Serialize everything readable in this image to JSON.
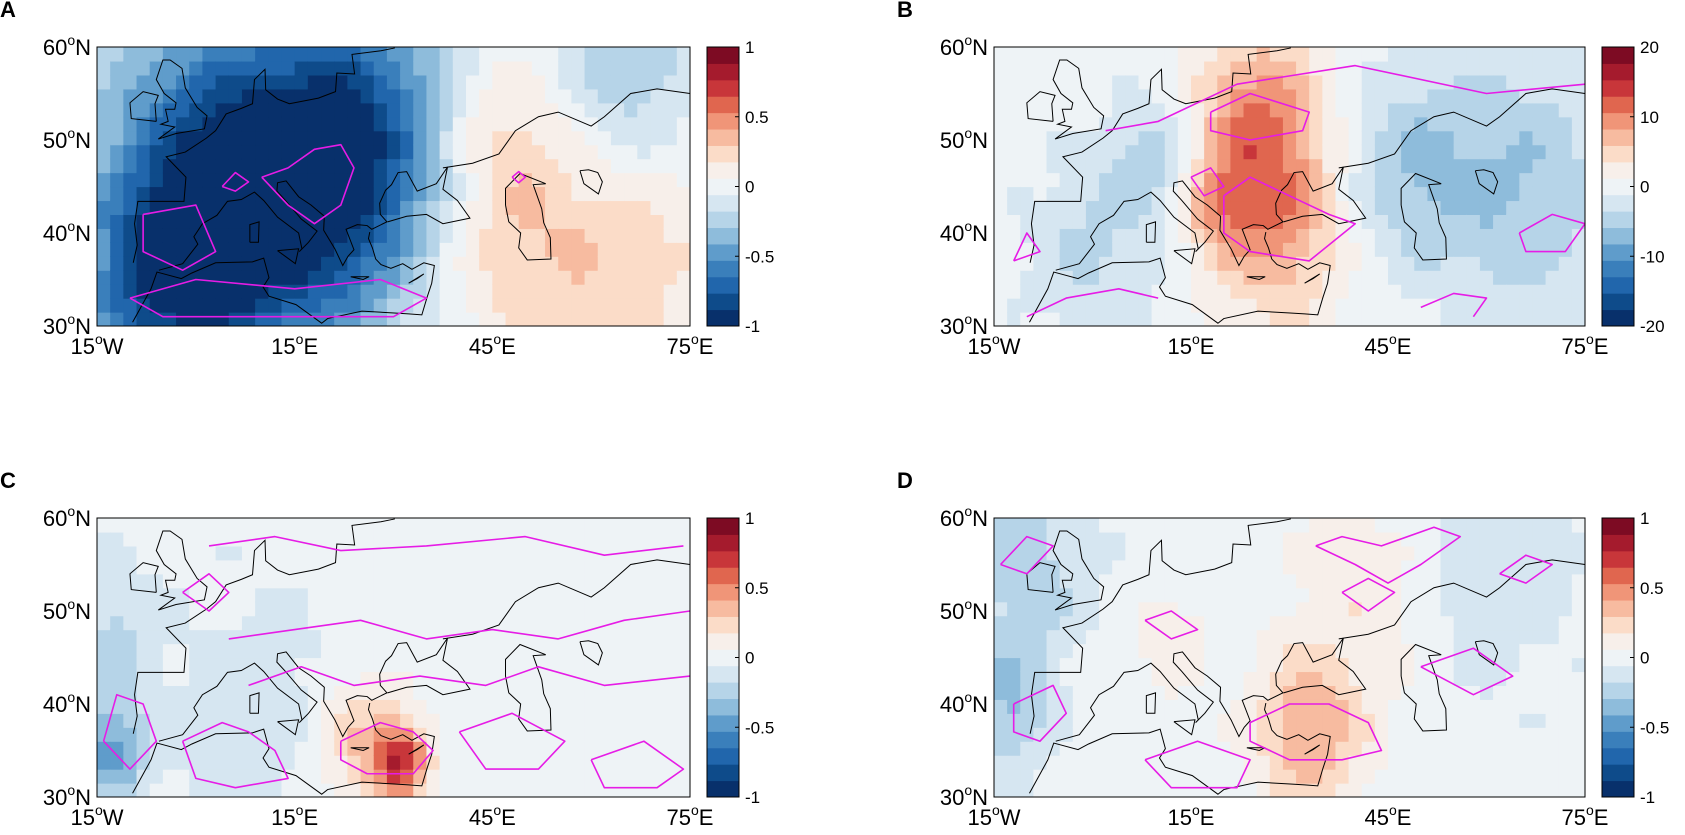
{
  "figure": {
    "panels": [
      {
        "id": "panel-a",
        "label": "A",
        "colorbar": {
          "ticks": [
            "1",
            "0.5",
            "0",
            "-0.5",
            "-1"
          ]
        }
      },
      {
        "id": "panel-b",
        "label": "B",
        "colorbar": {
          "ticks": [
            "20",
            "10",
            "0",
            "-10",
            "-20"
          ]
        }
      },
      {
        "id": "panel-c",
        "label": "C",
        "colorbar": {
          "ticks": [
            "1",
            "0.5",
            "0",
            "-0.5",
            "-1"
          ]
        }
      },
      {
        "id": "panel-d",
        "label": "D",
        "colorbar": {
          "ticks": [
            "1",
            "0.5",
            "0",
            "-0.5",
            "-1"
          ]
        }
      }
    ],
    "axes": {
      "x_ticks": [
        "15°W",
        "15°E",
        "45°E",
        "75°E"
      ],
      "y_ticks": [
        "60°N",
        "50°N",
        "40°N",
        "30°N"
      ]
    },
    "colors": {
      "contour": "#e61ce6",
      "coast": "#000000",
      "cmap": [
        "#08306b",
        "#0e4b8a",
        "#2166ac",
        "#3a7fbb",
        "#5f9ccb",
        "#8ebcdb",
        "#b6d4e8",
        "#d6e6f1",
        "#eef3f6",
        "#f7efea",
        "#fbdcc8",
        "#f7bba0",
        "#f09578",
        "#e0664f",
        "#c8363a",
        "#a51b2d",
        "#7d0b23"
      ]
    }
  },
  "chart_data": [
    {
      "type": "heatmap",
      "panel": "A",
      "title": "",
      "xlabel": "",
      "ylabel": "",
      "x_range": [
        -15,
        75
      ],
      "y_range": [
        30,
        60
      ],
      "clim": [
        -1,
        1
      ],
      "x_ticks": [
        "15°W",
        "15°E",
        "45°E",
        "75°E"
      ],
      "y_ticks": [
        "60°N",
        "50°N",
        "40°N",
        "30°N"
      ],
      "colorbar_ticks": [
        1,
        0.5,
        0,
        -0.5,
        -1
      ],
      "field_centers": [
        {
          "lon": 20,
          "lat": 46,
          "value": -0.75,
          "spread": 11
        },
        {
          "lon": 5,
          "lat": 40,
          "value": -0.55,
          "spread": 12
        },
        {
          "lon": -5,
          "lat": 34,
          "value": -0.55,
          "spread": 9
        },
        {
          "lon": 0,
          "lat": 52,
          "value": -0.35,
          "spread": 12
        },
        {
          "lon": 65,
          "lat": 55,
          "value": -0.4,
          "spread": 9
        },
        {
          "lon": 30,
          "lat": 55,
          "value": -0.3,
          "spread": 12
        },
        {
          "lon": 45,
          "lat": 52,
          "value": 0.25,
          "spread": 7
        },
        {
          "lon": 62,
          "lat": 42,
          "value": 0.35,
          "spread": 12
        },
        {
          "lon": 44,
          "lat": 38,
          "value": 0.15,
          "spread": 8
        }
      ]
    },
    {
      "type": "heatmap",
      "panel": "B",
      "title": "",
      "xlabel": "",
      "ylabel": "",
      "x_range": [
        -15,
        75
      ],
      "y_range": [
        30,
        60
      ],
      "clim": [
        -20,
        20
      ],
      "x_ticks": [
        "15°W",
        "15°E",
        "45°E",
        "75°E"
      ],
      "y_ticks": [
        "60°N",
        "50°N",
        "40°N",
        "30°N"
      ],
      "colorbar_ticks": [
        20,
        10,
        0,
        -10,
        -20
      ],
      "field_centers": [
        {
          "lon": 25,
          "lat": 52,
          "value": 10,
          "spread": 7
        },
        {
          "lon": 28,
          "lat": 40,
          "value": 8,
          "spread": 7
        },
        {
          "lon": 18,
          "lat": 43,
          "value": 5,
          "spread": 4
        },
        {
          "lon": 10,
          "lat": 48,
          "value": -5,
          "spread": 5
        },
        {
          "lon": 65,
          "lat": 45,
          "value": -6,
          "spread": 10
        },
        {
          "lon": 48,
          "lat": 47,
          "value": -5,
          "spread": 7
        },
        {
          "lon": 0,
          "lat": 38,
          "value": -4,
          "spread": 7
        }
      ]
    },
    {
      "type": "heatmap",
      "panel": "C",
      "title": "",
      "xlabel": "",
      "ylabel": "",
      "x_range": [
        -15,
        75
      ],
      "y_range": [
        30,
        60
      ],
      "clim": [
        -1,
        1
      ],
      "x_ticks": [
        "15°W",
        "15°E",
        "45°E",
        "75°E"
      ],
      "y_ticks": [
        "60°N",
        "50°N",
        "40°N",
        "30°N"
      ],
      "colorbar_ticks": [
        1,
        0.5,
        0,
        -0.5,
        -1
      ],
      "field_centers": [
        {
          "lon": 31,
          "lat": 34,
          "value": 0.7,
          "spread": 3
        },
        {
          "lon": 24,
          "lat": 36,
          "value": 0.3,
          "spread": 5
        },
        {
          "lon": -13,
          "lat": 35,
          "value": -0.45,
          "spread": 4
        },
        {
          "lon": -13,
          "lat": 48,
          "value": -0.2,
          "spread": 5
        },
        {
          "lon": 10,
          "lat": 38,
          "value": -0.15,
          "spread": 10
        }
      ]
    },
    {
      "type": "heatmap",
      "panel": "D",
      "title": "",
      "xlabel": "",
      "ylabel": "",
      "x_range": [
        -15,
        75
      ],
      "y_range": [
        30,
        60
      ],
      "clim": [
        -1,
        1
      ],
      "x_ticks": [
        "15°W",
        "15°E",
        "45°E",
        "75°E"
      ],
      "y_ticks": [
        "60°N",
        "50°N",
        "40°N",
        "30°N"
      ],
      "colorbar_ticks": [
        1,
        0.5,
        0,
        -0.5,
        -1
      ],
      "field_centers": [
        {
          "lon": 33,
          "lat": 37,
          "value": 0.4,
          "spread": 6
        },
        {
          "lon": 42,
          "lat": 52,
          "value": 0.15,
          "spread": 8
        },
        {
          "lon": 12,
          "lat": 47,
          "value": 0.15,
          "spread": 4
        },
        {
          "lon": -13,
          "lat": 40,
          "value": -0.3,
          "spread": 5
        },
        {
          "lon": -10,
          "lat": 55,
          "value": -0.25,
          "spread": 7
        },
        {
          "lon": 60,
          "lat": 55,
          "value": -0.15,
          "spread": 10
        }
      ]
    }
  ]
}
